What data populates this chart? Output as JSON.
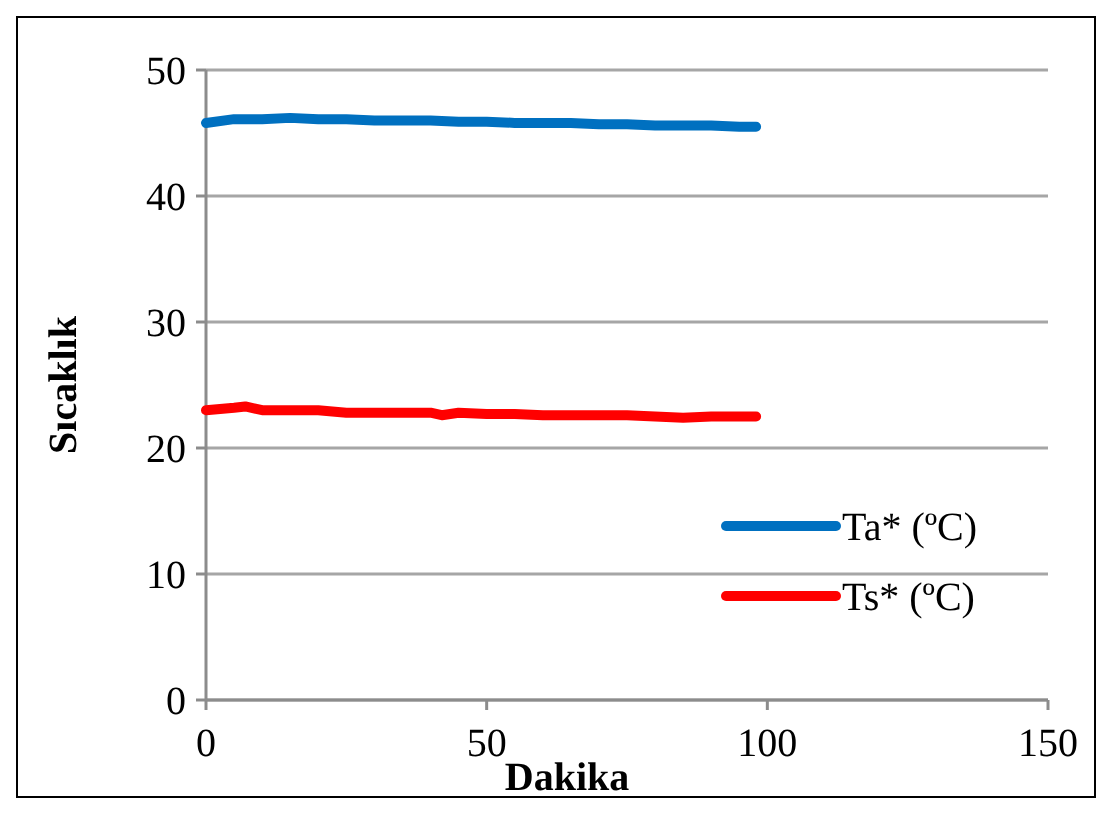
{
  "chart_data": {
    "type": "line",
    "xlabel": "Dakika",
    "ylabel": "Sıcaklık",
    "xlim": [
      0,
      150
    ],
    "xticks": [
      0,
      50,
      100,
      150
    ],
    "ylim": [
      0,
      50
    ],
    "yticks": [
      0,
      10,
      20,
      30,
      40,
      50
    ],
    "grid": "y",
    "legend": "bottom right",
    "marker": "none",
    "line_style": "solid",
    "series": [
      {
        "name": "Ta* (ºC)",
        "color": "#0070c0",
        "x": [
          0,
          5,
          10,
          15,
          20,
          25,
          30,
          35,
          40,
          45,
          50,
          55,
          60,
          65,
          70,
          75,
          80,
          85,
          90,
          95,
          98
        ],
        "values": [
          45.8,
          46.1,
          46.1,
          46.2,
          46.1,
          46.1,
          46.0,
          46.0,
          46.0,
          45.9,
          45.9,
          45.8,
          45.8,
          45.8,
          45.7,
          45.7,
          45.6,
          45.6,
          45.6,
          45.5,
          45.5
        ]
      },
      {
        "name": "Ts* (ºC)",
        "color": "#ff0000",
        "x": [
          0,
          5,
          7,
          10,
          15,
          20,
          25,
          30,
          35,
          40,
          42,
          45,
          50,
          55,
          60,
          65,
          70,
          75,
          80,
          85,
          90,
          95,
          98
        ],
        "values": [
          23.0,
          23.2,
          23.3,
          23.0,
          23.0,
          23.0,
          22.8,
          22.8,
          22.8,
          22.8,
          22.6,
          22.8,
          22.7,
          22.7,
          22.6,
          22.6,
          22.6,
          22.6,
          22.5,
          22.4,
          22.5,
          22.5,
          22.5
        ]
      }
    ]
  }
}
